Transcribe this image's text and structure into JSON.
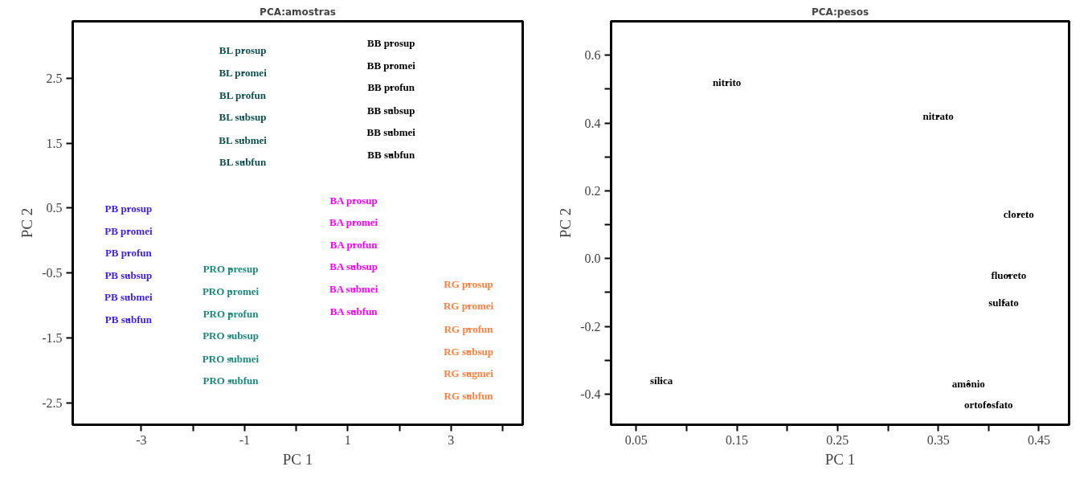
{
  "chart_data": [
    {
      "type": "scatter",
      "title": "PCA:amostras",
      "xlabel": "PC 1",
      "ylabel": "PC 2",
      "marker": "none",
      "xlim": [
        -4.33,
        4.39
      ],
      "ylim": [
        -2.84,
        3.38
      ],
      "xticks": [
        -3,
        {
          "value": -2,
          "label": null
        },
        -1,
        {
          "value": 0,
          "label": null
        },
        1,
        {
          "value": 2,
          "label": null
        },
        3,
        {
          "value": 4,
          "label": null
        }
      ],
      "yticks": [
        -2.5,
        -1.5,
        -0.5,
        0.5,
        1.5,
        2.5
      ],
      "series": [
        {
          "color": "#0f5050",
          "x": [
            -1.03,
            -1.03,
            -1.03,
            -1.03,
            -1.03,
            -1.03
          ],
          "values": [
            2.93,
            2.59,
            2.24,
            1.9,
            1.55,
            1.21
          ],
          "value_labels": [
            "BL prosup",
            "BL promei",
            "BL profun",
            "BL subsup",
            "BL submei",
            "BL subfun"
          ]
        },
        {
          "color": "#000000",
          "x": [
            1.84,
            1.84,
            1.84,
            1.84,
            1.84,
            1.84
          ],
          "values": [
            3.05,
            2.7,
            2.36,
            2.01,
            1.67,
            1.32
          ],
          "value_labels": [
            "BB prosup",
            "BB promei",
            "BB profun",
            "BB subsup",
            "BB submei",
            "BB subfun"
          ]
        },
        {
          "color": "#4020f0",
          "x": [
            -3.25,
            -3.25,
            -3.25,
            -3.25,
            -3.25,
            -3.25
          ],
          "values": [
            0.49,
            0.15,
            -0.19,
            -0.54,
            -0.87,
            -1.22
          ],
          "value_labels": [
            "PB prosup",
            "PB promei",
            "PB profun",
            "PB subsup",
            "PB submei",
            "PB subfun"
          ]
        },
        {
          "color": "#1a8a80",
          "x": [
            -1.27,
            -1.27,
            -1.27,
            -1.27,
            -1.27,
            -1.27
          ],
          "values": [
            -0.44,
            -0.78,
            -1.13,
            -1.47,
            -1.82,
            -2.16
          ],
          "value_labels": [
            "PRO presup",
            "PRO promei",
            "PRO profun",
            "PRO subsup",
            "PRO submei",
            "PRO subfun"
          ]
        },
        {
          "color": "#ff00ff",
          "x": [
            1.12,
            1.12,
            1.12,
            1.12,
            1.12,
            1.12
          ],
          "values": [
            0.62,
            0.28,
            -0.06,
            -0.4,
            -0.75,
            -1.09
          ],
          "value_labels": [
            "BA prosup",
            "BA promei",
            "BA profun",
            "BA subsup",
            "BA submei",
            "BA subfun"
          ]
        },
        {
          "color": "#ff8040",
          "x": [
            3.34,
            3.34,
            3.34,
            3.34,
            3.34,
            3.34
          ],
          "values": [
            -0.67,
            -1.01,
            -1.36,
            -1.71,
            -2.05,
            -2.4
          ],
          "value_labels": [
            "RG prosup",
            "RG promei",
            "RG profun",
            "RG subsup",
            "RG sugmei",
            "RG subfun"
          ]
        }
      ]
    },
    {
      "type": "scatter",
      "title": "PCA:pesos",
      "xlabel": "PC 1",
      "ylabel": "PC 2",
      "marker": "none",
      "xlim": [
        0.025,
        0.48
      ],
      "ylim": [
        -0.49,
        0.7
      ],
      "xticks": [
        0.05,
        {
          "value": 0.1,
          "label": null
        },
        0.15,
        {
          "value": 0.2,
          "label": null
        },
        0.25,
        {
          "value": 0.3,
          "label": null
        },
        0.35,
        {
          "value": 0.4,
          "label": null
        },
        0.45
      ],
      "yticks": [
        {
          "value": -0.4,
          "label": "-0.4"
        },
        {
          "value": -0.3,
          "label": null
        },
        {
          "value": -0.2,
          "label": "-0.2"
        },
        {
          "value": -0.1,
          "label": null
        },
        {
          "value": 0,
          "label": "0.0"
        },
        {
          "value": 0.1,
          "label": null
        },
        0.2,
        {
          "value": 0.3,
          "label": null
        },
        0.4,
        {
          "value": 0.5,
          "label": null
        },
        0.6
      ],
      "series": [
        {
          "color": "#000000",
          "x": [
            0.14,
            0.35,
            0.43,
            0.42,
            0.415,
            0.075,
            0.38,
            0.4
          ],
          "values": [
            0.52,
            0.42,
            0.13,
            -0.05,
            -0.13,
            -0.36,
            -0.37,
            -0.43
          ],
          "value_labels": [
            "nitrito",
            "nitrato",
            "cloreto",
            "fluoreto",
            "sulfato",
            "sílica",
            "amônio",
            "ortofosfato"
          ]
        }
      ]
    }
  ]
}
